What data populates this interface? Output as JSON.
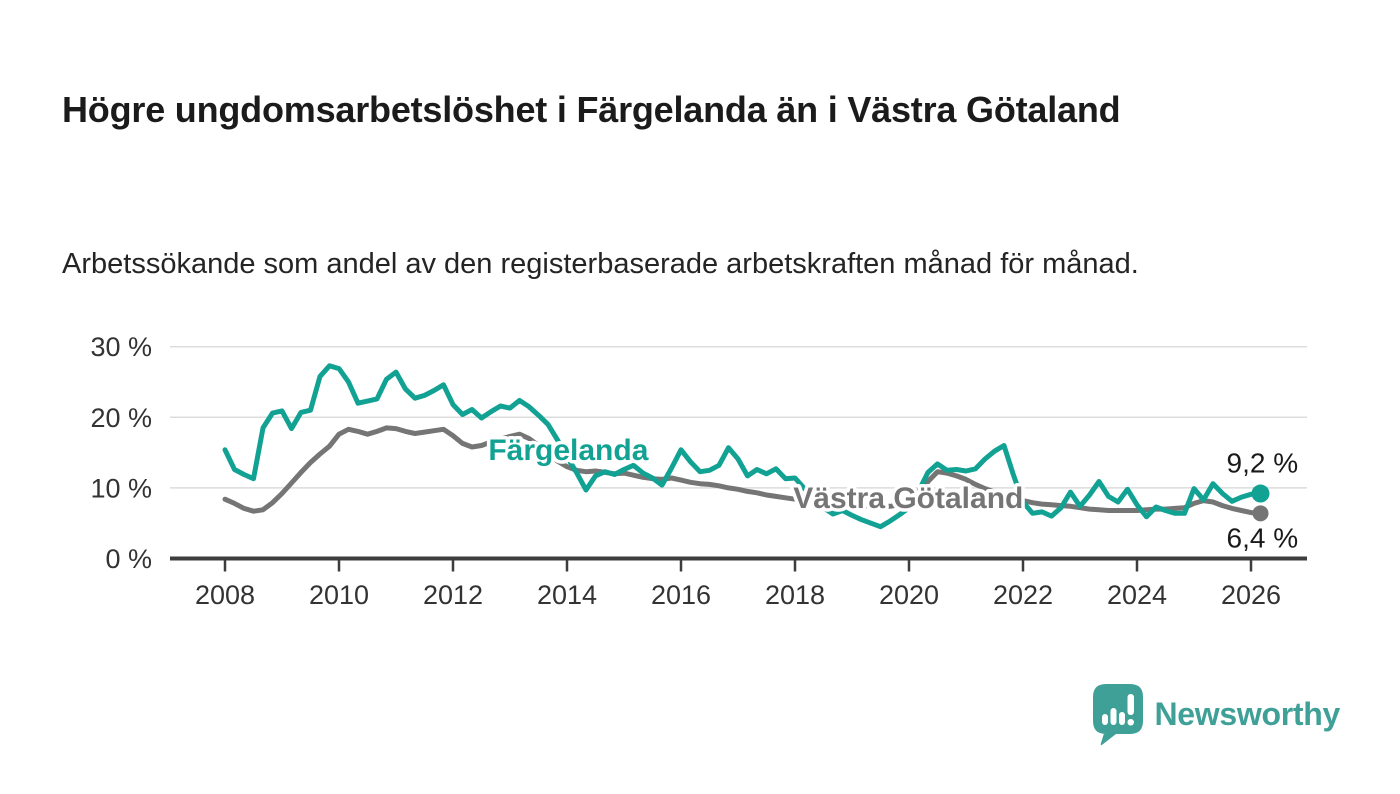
{
  "header": {
    "title": "Högre ungdomsarbetslöshet i Färgelanda än i Västra Götaland",
    "subtitle": "Arbetssökande som andel av den registerbaserade arbetskraften månad för månad."
  },
  "footer": {
    "brand": "Newsworthy"
  },
  "colors": {
    "fargelanda": "#12a294",
    "vastra_gotaland": "#757575",
    "axis": "#3d3d3d",
    "grid": "#dcdcdc",
    "tick_label": "#333333",
    "value_label": "#1a1a1a",
    "brand_teal": "#3ea096"
  },
  "chart_data": {
    "type": "line",
    "x_label": "",
    "y_label": "",
    "x_start_year": 2008,
    "x_points_per_year": 6,
    "x_ticks": [
      2008,
      2010,
      2012,
      2014,
      2016,
      2018,
      2020,
      2022,
      2024,
      2026
    ],
    "y_ticks": [
      {
        "value": 0,
        "label": "0 %"
      },
      {
        "value": 10,
        "label": "10 %"
      },
      {
        "value": 20,
        "label": "20 %"
      },
      {
        "value": 30,
        "label": "30 %"
      }
    ],
    "ylim": [
      0,
      31
    ],
    "xlim": [
      2007.0,
      2027.0
    ],
    "grid": true,
    "legend_position": "inline-labels",
    "series": [
      {
        "name": "Västra Götaland",
        "color": "#757575",
        "end_label": "6,4 %",
        "end_value": 6.4,
        "label_anchor": {
          "t": 2017.97,
          "v": 7.15
        },
        "values": [
          8.4,
          7.8,
          7.1,
          6.7,
          6.9,
          7.9,
          9.2,
          10.7,
          12.2,
          13.6,
          14.8,
          15.9,
          17.6,
          18.3,
          18.0,
          17.6,
          18.0,
          18.5,
          18.4,
          18.0,
          17.7,
          17.9,
          18.1,
          18.3,
          17.4,
          16.3,
          15.8,
          16.0,
          16.5,
          16.9,
          17.3,
          17.6,
          17.0,
          16.0,
          14.9,
          13.8,
          13.0,
          12.5,
          12.3,
          12.4,
          12.2,
          12.0,
          12.1,
          11.8,
          11.5,
          11.3,
          11.2,
          11.4,
          11.1,
          10.8,
          10.6,
          10.5,
          10.3,
          10.0,
          9.8,
          9.5,
          9.3,
          9.0,
          8.8,
          8.6,
          8.4,
          8.2,
          8.0,
          7.9,
          7.8,
          7.8,
          7.7,
          7.5,
          7.4,
          7.3,
          7.4,
          7.6,
          7.8,
          8.6,
          10.9,
          12.3,
          12.1,
          11.7,
          11.2,
          10.5,
          9.9,
          9.4,
          9.0,
          8.6,
          8.2,
          7.9,
          7.7,
          7.6,
          7.5,
          7.4,
          7.2,
          7.0,
          6.9,
          6.8,
          6.8,
          6.8,
          6.8,
          6.9,
          7.0,
          7.0,
          7.1,
          7.2,
          7.8,
          8.2,
          8.0,
          7.5,
          7.1,
          6.8,
          6.5,
          6.4
        ]
      },
      {
        "name": "Färgelanda",
        "color": "#12a294",
        "end_label": "9,2 %",
        "end_value": 9.2,
        "label_anchor": {
          "t": 2012.62,
          "v": 13.95
        },
        "values": [
          15.4,
          12.6,
          11.9,
          11.3,
          18.5,
          20.6,
          20.9,
          18.4,
          20.7,
          21.0,
          25.8,
          27.3,
          26.9,
          25.0,
          22.0,
          22.3,
          22.6,
          25.4,
          26.4,
          24.0,
          22.7,
          23.1,
          23.8,
          24.6,
          21.8,
          20.4,
          21.1,
          19.9,
          20.8,
          21.6,
          21.3,
          22.4,
          21.5,
          20.3,
          19.0,
          16.8,
          14.4,
          12.2,
          9.7,
          11.7,
          12.3,
          11.9,
          12.6,
          13.2,
          12.1,
          11.4,
          10.4,
          12.8,
          15.4,
          13.7,
          12.3,
          12.5,
          13.2,
          15.7,
          14.1,
          11.7,
          12.6,
          12.0,
          12.7,
          11.3,
          11.4,
          9.9,
          8.3,
          7.2,
          6.3,
          6.8,
          6.1,
          5.5,
          5.0,
          4.5,
          5.3,
          6.2,
          7.2,
          9.5,
          12.2,
          13.4,
          12.5,
          12.6,
          12.4,
          12.7,
          14.1,
          15.2,
          16.0,
          11.8,
          8.0,
          6.4,
          6.6,
          6.0,
          7.2,
          9.4,
          7.4,
          9.0,
          10.9,
          8.8,
          8.0,
          9.8,
          7.6,
          5.9,
          7.3,
          6.8,
          6.4,
          6.4,
          9.9,
          8.3,
          10.6,
          9.2,
          8.1,
          8.7,
          9.1,
          9.2
        ]
      }
    ]
  }
}
